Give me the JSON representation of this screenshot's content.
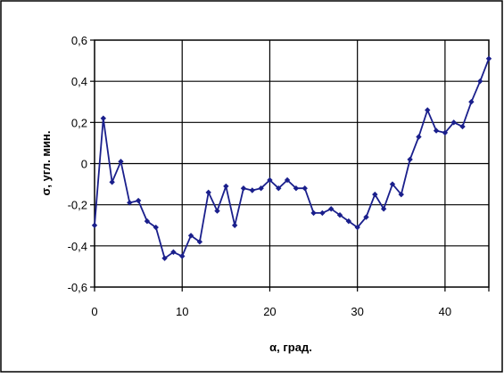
{
  "chart_data": {
    "type": "line",
    "title": "",
    "xlabel": "α, град.",
    "ylabel": "σ, угл. мин.",
    "xlim": [
      0,
      45
    ],
    "ylim": [
      -0.6,
      0.6
    ],
    "x_ticks": [
      "0",
      "10",
      "20",
      "30",
      "40"
    ],
    "y_ticks": [
      "-0,6",
      "-0,4",
      "-0,2",
      "0",
      "0,2",
      "0,4",
      "0,6"
    ],
    "grid": true,
    "legend": "none",
    "series": [
      {
        "color": "#1a1f8c",
        "x": [
          0,
          1,
          2,
          3,
          4,
          5,
          6,
          7,
          8,
          9,
          10,
          11,
          12,
          13,
          14,
          15,
          16,
          17,
          18,
          19,
          20,
          21,
          22,
          23,
          24,
          25,
          26,
          27,
          28,
          29,
          30,
          31,
          32,
          33,
          34,
          35,
          36,
          37,
          38,
          39,
          40,
          41,
          42,
          43,
          44,
          45
        ],
        "y": [
          -0.3,
          0.22,
          -0.09,
          0.01,
          -0.19,
          -0.18,
          -0.28,
          -0.31,
          -0.46,
          -0.43,
          -0.45,
          -0.35,
          -0.38,
          -0.14,
          -0.23,
          -0.11,
          -0.3,
          -0.12,
          -0.13,
          -0.12,
          -0.08,
          -0.12,
          -0.08,
          -0.12,
          -0.12,
          -0.24,
          -0.24,
          -0.22,
          -0.25,
          -0.28,
          -0.31,
          -0.26,
          -0.15,
          -0.22,
          -0.1,
          -0.15,
          0.02,
          0.13,
          0.26,
          0.16,
          0.15,
          0.2,
          0.18,
          0.3,
          0.4,
          0.51
        ]
      }
    ]
  }
}
